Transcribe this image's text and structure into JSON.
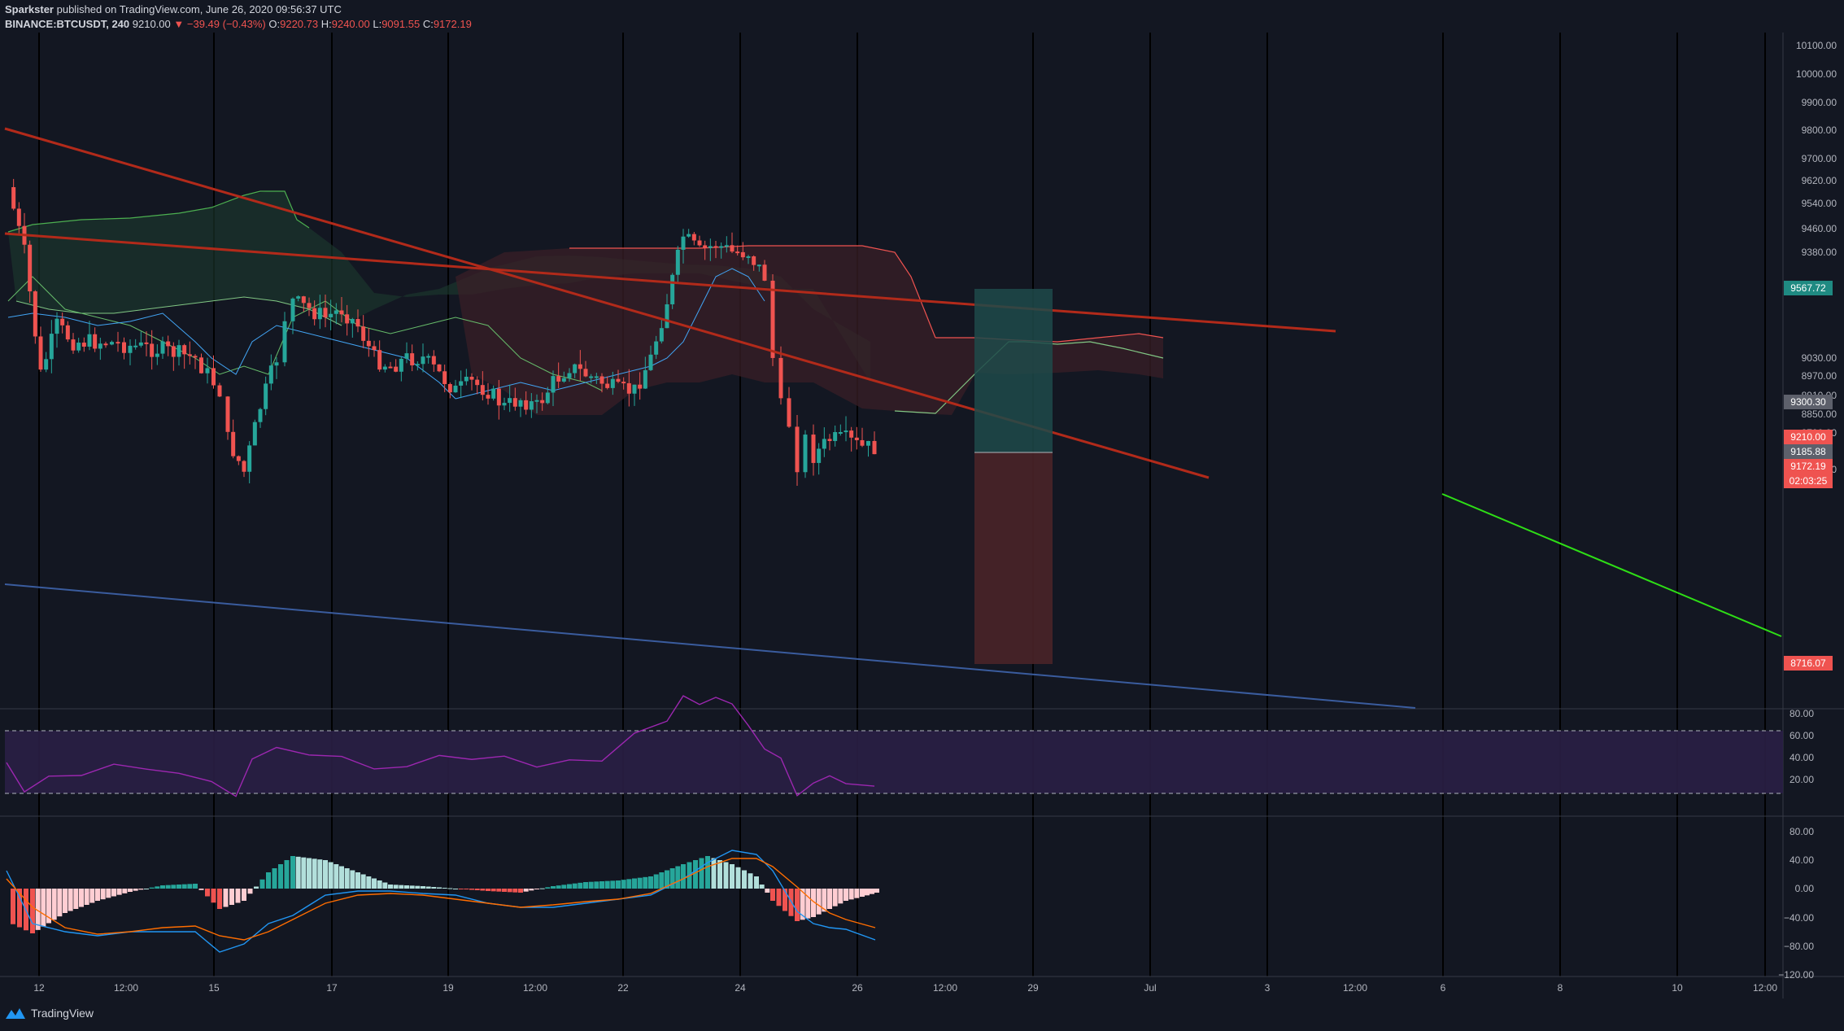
{
  "header": {
    "author": "Sparkster",
    "published_text": "published on TradingView.com, June 26, 2020 09:56:37 UTC",
    "symbol": "BINANCE:BTCUSDT, 240",
    "last": "9210.00",
    "change": "−39.49 (−0.43%)",
    "open_label": "O:",
    "open": "9220.73",
    "high_label": "H:",
    "high": "9240.00",
    "low_label": "L:",
    "low": "9091.55",
    "close_label": "C:",
    "close": "9172.19"
  },
  "footer": {
    "brand": "TradingView",
    "logo_icon": "tradingview-logo-icon"
  },
  "colors": {
    "background": "#131722",
    "up": "#26a69a",
    "down": "#ef5350",
    "grid": "#1e222d",
    "trendline": "#b22a1a",
    "support_line": "#3a5c9e",
    "projection_line": "#2ede16",
    "rsi": "#9c27b0",
    "macd": "#2196f3",
    "signal": "#ff6d00"
  },
  "price_axis": {
    "ticks": [
      "10100.00",
      "10000.00",
      "9900.00",
      "9800.00",
      "9700.00",
      "9620.00",
      "9540.00",
      "9460.00",
      "9380.00",
      "9030.00",
      "8970.00",
      "8910.00",
      "8850.00",
      "8790.00",
      "8674.00"
    ],
    "tags": {
      "target": "9567.72",
      "entry": "9300.30",
      "last": "9210.00",
      "mid": "9185.88",
      "close": "9172.19",
      "countdown": "02:03:25",
      "stop": "8716.07"
    }
  },
  "rsi_axis": {
    "ticks": [
      "80.00",
      "60.00",
      "40.00",
      "20.00"
    ]
  },
  "macd_axis": {
    "ticks": [
      "80.00",
      "40.00",
      "0.00",
      "−40.00",
      "−80.00",
      "−120.00"
    ]
  },
  "time_axis": {
    "labels": [
      "12",
      "12:00",
      "15",
      "17",
      "19",
      "12:00",
      "22",
      "24",
      "26",
      "12:00",
      "29",
      "Jul",
      "3",
      "12:00",
      "6",
      "8",
      "10",
      "12:00"
    ]
  }
}
